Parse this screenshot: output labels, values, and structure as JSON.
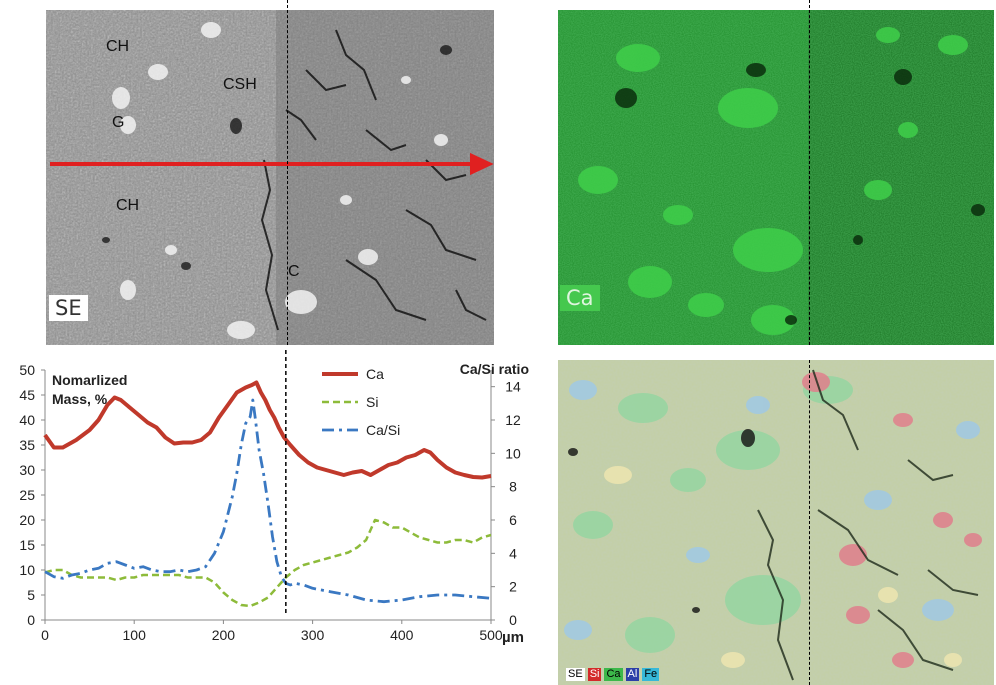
{
  "panels": {
    "se": {
      "label": "SE",
      "features": [
        "CH",
        "CSH",
        "G",
        "CH",
        "C"
      ]
    },
    "ca": {
      "label": "Ca"
    },
    "overlay": {
      "legend": [
        {
          "text": "SE",
          "bg": "#ffffff",
          "fg": "#000000"
        },
        {
          "text": "Si",
          "bg": "#d42a2a",
          "fg": "#ffffff"
        },
        {
          "text": "Ca",
          "bg": "#3cb84a",
          "fg": "#000000"
        },
        {
          "text": "Al",
          "bg": "#2b3fa8",
          "fg": "#ffffff"
        },
        {
          "text": "Fe",
          "bg": "#36b8d8",
          "fg": "#000000"
        }
      ]
    }
  },
  "colors": {
    "ca": "#c0392b",
    "si": "#8dbb3a",
    "ratio": "#3a78c2",
    "arrow": "#e02020",
    "ca_map": "#2fa838"
  },
  "chart_data": {
    "type": "line",
    "title": "Nomarlized Mass, %",
    "xlabel": "µm",
    "ylabel": "",
    "y2label": "Ca/Si ratio",
    "xlim": [
      0,
      500
    ],
    "ylim": [
      0,
      50
    ],
    "y2lim": [
      0,
      15
    ],
    "xticks": [
      0,
      100,
      200,
      300,
      400,
      500
    ],
    "yticks": [
      0,
      5,
      10,
      15,
      20,
      25,
      30,
      35,
      40,
      45,
      50
    ],
    "y2ticks": [
      0,
      2,
      4,
      6,
      8,
      10,
      12,
      14
    ],
    "grid": false,
    "legend_position": "top-right",
    "marker_x": 270,
    "series": [
      {
        "name": "Ca",
        "axis": "left",
        "style": "solid",
        "x": [
          0,
          10,
          20,
          35,
          50,
          60,
          70,
          78,
          85,
          95,
          105,
          115,
          125,
          135,
          145,
          155,
          165,
          175,
          185,
          195,
          205,
          215,
          225,
          232,
          237,
          242,
          247,
          252,
          257,
          262,
          268,
          275,
          285,
          295,
          305,
          315,
          325,
          335,
          345,
          355,
          365,
          375,
          385,
          395,
          405,
          415,
          425,
          432,
          440,
          450,
          460,
          470,
          480,
          490,
          500
        ],
        "values": [
          37,
          34.5,
          34.5,
          36,
          38,
          40,
          43,
          44.5,
          44,
          42.5,
          41,
          39.5,
          38.5,
          36.5,
          35.3,
          35.5,
          35.5,
          36,
          37.5,
          40.5,
          43,
          45.5,
          46.5,
          47,
          47.5,
          45.5,
          44,
          42,
          40.5,
          38.5,
          36.5,
          35,
          33,
          31.5,
          30.5,
          30,
          29.5,
          29,
          29.5,
          29.8,
          29,
          30,
          31,
          31.5,
          32.5,
          33,
          34,
          33.5,
          32,
          30.5,
          29.5,
          29,
          28.6,
          28.5,
          28.8
        ]
      },
      {
        "name": "Si",
        "axis": "left",
        "style": "dashed",
        "x": [
          0,
          10,
          20,
          30,
          40,
          50,
          60,
          70,
          80,
          90,
          100,
          110,
          120,
          130,
          140,
          150,
          160,
          170,
          180,
          190,
          200,
          210,
          220,
          230,
          240,
          250,
          260,
          270,
          280,
          290,
          300,
          310,
          320,
          330,
          340,
          350,
          360,
          370,
          380,
          390,
          400,
          410,
          420,
          430,
          440,
          450,
          460,
          470,
          480,
          490,
          500
        ],
        "values": [
          9.5,
          10,
          10,
          9,
          8.5,
          8.5,
          8.5,
          8.5,
          8,
          8.5,
          8.5,
          9,
          9,
          9,
          9,
          9,
          8.5,
          8.5,
          8.5,
          7.5,
          5.5,
          4,
          3,
          2.8,
          3.5,
          4.5,
          6.5,
          8.5,
          10,
          11,
          11.5,
          12,
          12.5,
          13,
          13.5,
          14.5,
          16,
          20,
          19.5,
          18.5,
          18.5,
          17.5,
          16.5,
          16,
          15.5,
          15.5,
          16,
          16,
          15.5,
          16.5,
          17
        ]
      },
      {
        "name": "Ca/Si",
        "axis": "right",
        "style": "dashdot",
        "x": [
          0,
          10,
          20,
          30,
          40,
          50,
          60,
          70,
          80,
          90,
          100,
          110,
          120,
          130,
          140,
          150,
          160,
          170,
          180,
          190,
          200,
          210,
          215,
          220,
          225,
          230,
          233,
          236,
          240,
          245,
          250,
          255,
          260,
          265,
          270,
          275,
          280,
          290,
          300,
          320,
          340,
          360,
          380,
          400,
          420,
          440,
          460,
          480,
          500
        ],
        "values": [
          2.9,
          2.6,
          2.5,
          2.7,
          2.8,
          3,
          3.1,
          3.4,
          3.5,
          3.3,
          3.1,
          3.2,
          3,
          2.9,
          2.9,
          3,
          2.9,
          3,
          3.2,
          4,
          5.3,
          7.4,
          8.8,
          10.5,
          11.8,
          12.2,
          13.2,
          12,
          10.2,
          8.8,
          7,
          5,
          3.5,
          2.6,
          2.2,
          2.1,
          2.2,
          2.1,
          1.9,
          1.7,
          1.5,
          1.2,
          1.1,
          1.2,
          1.4,
          1.5,
          1.5,
          1.4,
          1.3
        ]
      }
    ]
  }
}
